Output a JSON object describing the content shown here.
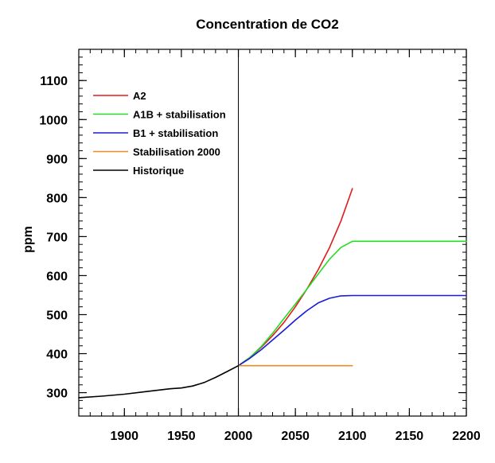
{
  "chart_data": {
    "type": "line",
    "title": "Concentration de CO2",
    "xlabel": "",
    "ylabel": "ppm",
    "xlim": [
      1860,
      2200
    ],
    "ylim": [
      240,
      1180
    ],
    "x_ticks": [
      1900,
      1950,
      2000,
      2050,
      2100,
      2150,
      2200
    ],
    "x_tick_labels": [
      "1900",
      "1950",
      "2000",
      "2050",
      "2100",
      "2150",
      "2200"
    ],
    "y_ticks": [
      300,
      400,
      500,
      600,
      700,
      800,
      900,
      1000,
      1100
    ],
    "y_tick_labels": [
      "300",
      "400",
      "500",
      "600",
      "700",
      "800",
      "900",
      "1000",
      "1100"
    ],
    "x_minor_step": 10,
    "y_minor_step": 20,
    "grid": false,
    "legend_position": "top-left",
    "reference_lines": [
      {
        "axis": "x",
        "value": 2000,
        "color": "#000000"
      }
    ],
    "series": [
      {
        "name": "A2",
        "color": "#e01b1b",
        "x": [
          2000,
          2010,
          2020,
          2030,
          2040,
          2050,
          2060,
          2070,
          2080,
          2090,
          2100
        ],
        "y": [
          369,
          390,
          416,
          446,
          480,
          520,
          565,
          615,
          672,
          740,
          823
        ]
      },
      {
        "name": "A1B + stabilisation",
        "color": "#22dd22",
        "x": [
          2000,
          2010,
          2020,
          2030,
          2040,
          2050,
          2060,
          2070,
          2080,
          2090,
          2100,
          2150,
          2200
        ],
        "y": [
          369,
          390,
          418,
          452,
          490,
          527,
          565,
          604,
          642,
          672,
          688,
          688,
          688
        ]
      },
      {
        "name": "B1 + stabilisation",
        "color": "#1a1adb",
        "x": [
          2000,
          2010,
          2020,
          2030,
          2040,
          2050,
          2060,
          2070,
          2080,
          2090,
          2100,
          2150,
          2200
        ],
        "y": [
          369,
          388,
          410,
          435,
          460,
          486,
          510,
          530,
          542,
          548,
          549,
          549,
          549
        ]
      },
      {
        "name": "Stabilisation 2000",
        "color": "#f08a22",
        "x": [
          2000,
          2100
        ],
        "y": [
          369,
          369
        ]
      },
      {
        "name": "Historique",
        "color": "#000000",
        "x": [
          1860,
          1880,
          1900,
          1920,
          1940,
          1950,
          1960,
          1970,
          1980,
          1990,
          2000
        ],
        "y": [
          287,
          291,
          296,
          303,
          310,
          312,
          317,
          326,
          339,
          354,
          369
        ]
      }
    ]
  }
}
